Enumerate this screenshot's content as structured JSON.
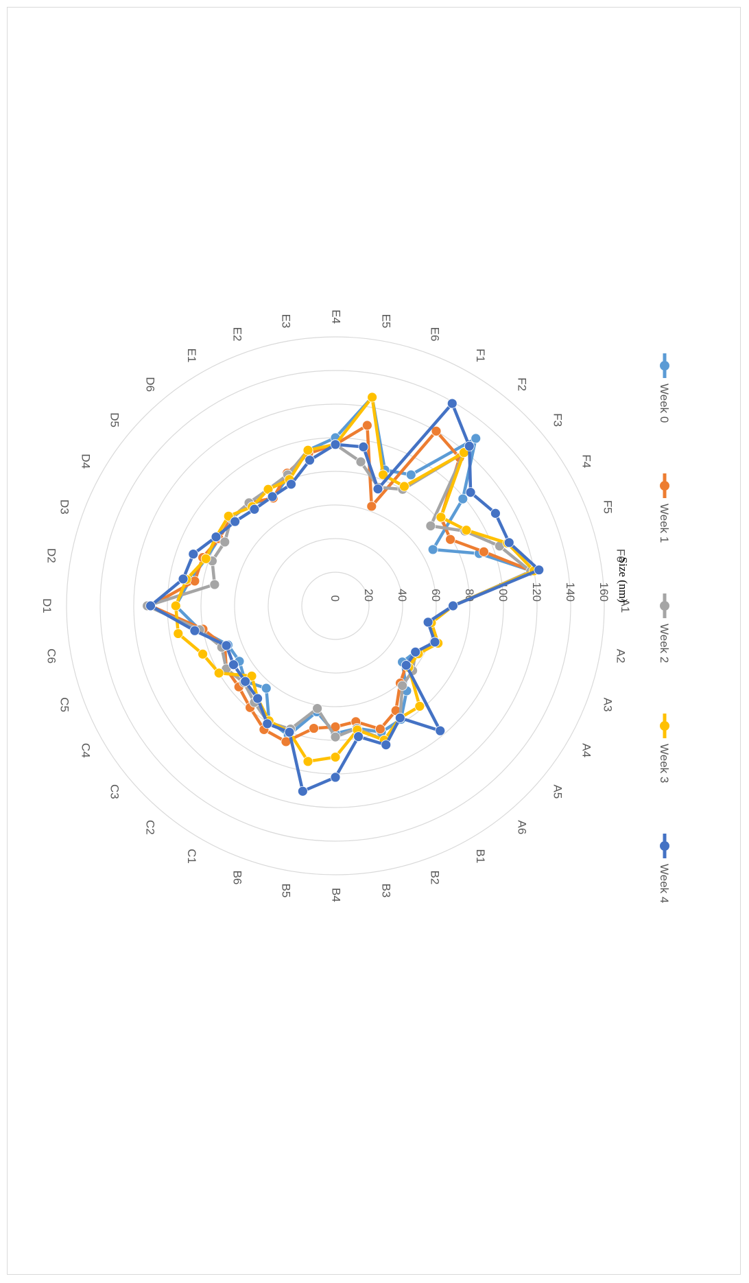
{
  "chart_data": {
    "type": "radar",
    "axis_title": "Size (nm)",
    "categories": [
      "A1",
      "A2",
      "A3",
      "A4",
      "A5",
      "A6",
      "B1",
      "B2",
      "B3",
      "B4",
      "B5",
      "B6",
      "C1",
      "C2",
      "C3",
      "C4",
      "C5",
      "C6",
      "D1",
      "D2",
      "D3",
      "D4",
      "D5",
      "D6",
      "E1",
      "E2",
      "E3",
      "E4",
      "E5",
      "E6",
      "F1",
      "F2",
      "F3",
      "F4",
      "F5",
      "F6"
    ],
    "rlim": [
      0,
      160
    ],
    "r_ticks": [
      0,
      20,
      40,
      60,
      80,
      100,
      120,
      140,
      160
    ],
    "grid": true,
    "legend_position": "top",
    "series": [
      {
        "name": "Week 0",
        "color": "#5B9BD5",
        "values": [
          70,
          58,
          65,
          55,
          52,
          66,
          78,
          80,
          74,
          76,
          64,
          82,
          79,
          64,
          70,
          66,
          68,
          82,
          95,
          88,
          82,
          80,
          81,
          79,
          74,
          82,
          94,
          100,
          126,
          86,
          90,
          130,
          99,
          67,
          91,
          119
        ]
      },
      {
        "name": "Week 1",
        "color": "#ED7D31",
        "values": [
          70,
          58,
          65,
          57,
          55,
          60,
          72,
          78,
          70,
          72,
          74,
          86,
          85,
          79,
          75,
          75,
          70,
          80,
          110,
          85,
          84,
          80,
          81,
          80,
          74,
          84,
          92,
          96,
          109,
          63,
          120,
          115,
          82,
          79,
          94,
          119
        ]
      },
      {
        "name": "Week 2",
        "color": "#A5A5A5",
        "values": [
          70,
          56,
          65,
          55,
          60,
          62,
          77,
          85,
          74,
          78,
          62,
          78,
          80,
          75,
          71,
          75,
          72,
          82,
          112,
          73,
          78,
          76,
          81,
          80,
          80,
          83,
          94,
          96,
          87,
          75,
          80,
          119,
          74,
          89,
          104,
          118
        ]
      },
      {
        "name": "Week 3",
        "color": "#FFC000",
        "values": [
          70,
          58,
          65,
          57,
          57,
          78,
          77,
          85,
          75,
          90,
          94,
          80,
          79,
          72,
          65,
          80,
          84,
          95,
          95,
          90,
          82,
          82,
          83,
          77,
          80,
          80,
          94,
          96,
          126,
          83,
          82,
          119,
          82,
          90,
          109,
          120
        ]
      },
      {
        "name": "Week 4",
        "color": "#4472C4",
        "values": [
          70,
          56,
          63,
          55,
          55,
          97,
          77,
          88,
          79,
          102,
          112,
          80,
          81,
          72,
          70,
          70,
          69,
          85,
          110,
          92,
          90,
          82,
          78,
          75,
          75,
          77,
          88,
          96,
          96,
          74,
          139,
          124,
          105,
          110,
          110,
          123
        ]
      }
    ]
  }
}
